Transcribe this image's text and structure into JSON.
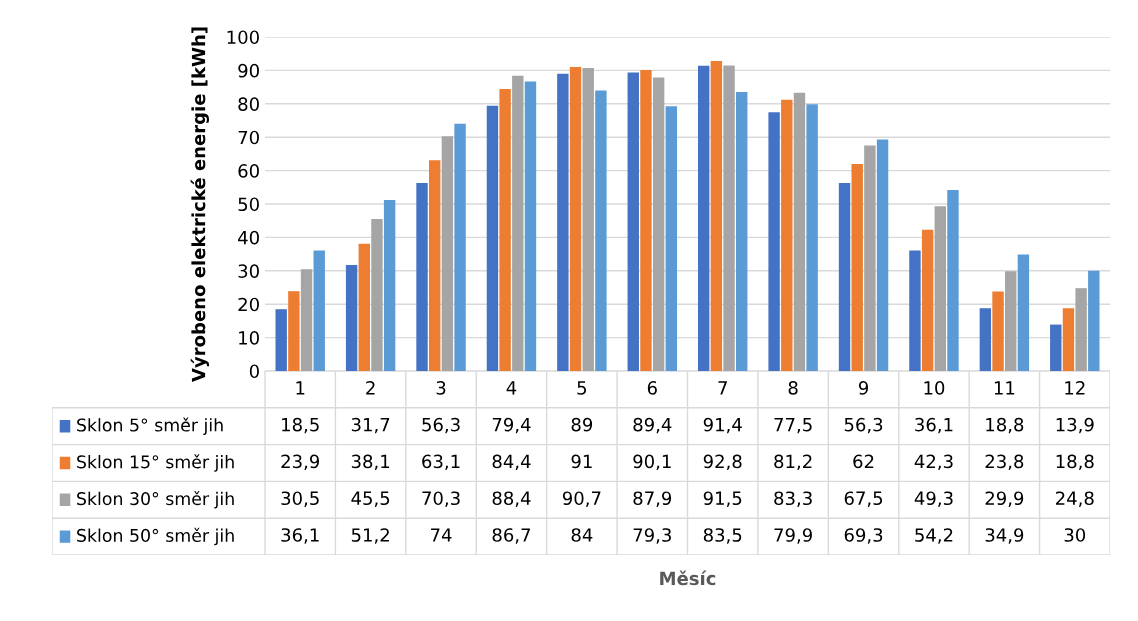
{
  "chart_data": {
    "type": "bar",
    "annotations": [
      "Měsíc"
    ],
    "ylabel": "Výrobeno elektrické energie [kWh]",
    "categories": [
      "1",
      "2",
      "3",
      "4",
      "5",
      "6",
      "7",
      "8",
      "9",
      "10",
      "11",
      "12"
    ],
    "series": [
      {
        "name": "Sklon 5° směr jih",
        "color": "#4472c4",
        "values": [
          18.5,
          31.7,
          56.3,
          79.4,
          89,
          89.4,
          91.4,
          77.5,
          56.3,
          36.1,
          18.8,
          13.9
        ],
        "value_labels": [
          "18,5",
          "31,7",
          "56,3",
          "79,4",
          "89",
          "89,4",
          "91,4",
          "77,5",
          "56,3",
          "36,1",
          "18,8",
          "13,9"
        ]
      },
      {
        "name": "Sklon 15° směr jih",
        "color": "#ed7d31",
        "values": [
          23.9,
          38.1,
          63.1,
          84.4,
          91,
          90.1,
          92.8,
          81.2,
          62,
          42.3,
          23.8,
          18.8
        ],
        "value_labels": [
          "23,9",
          "38,1",
          "63,1",
          "84,4",
          "91",
          "90,1",
          "92,8",
          "81,2",
          "62",
          "42,3",
          "23,8",
          "18,8"
        ]
      },
      {
        "name": "Sklon 30° směr jih",
        "color": "#a5a5a5",
        "values": [
          30.5,
          45.5,
          70.3,
          88.4,
          90.7,
          87.9,
          91.5,
          83.3,
          67.5,
          49.3,
          29.9,
          24.8
        ],
        "value_labels": [
          "30,5",
          "45,5",
          "70,3",
          "88,4",
          "90,7",
          "87,9",
          "91,5",
          "83,3",
          "67,5",
          "49,3",
          "29,9",
          "24,8"
        ]
      },
      {
        "name": "Sklon 50° směr jih",
        "color": "#5b9bd5",
        "values": [
          36.1,
          51.2,
          74,
          86.7,
          84,
          79.3,
          83.5,
          79.9,
          69.3,
          54.2,
          34.9,
          30
        ],
        "value_labels": [
          "36,1",
          "51,2",
          "74",
          "86,7",
          "84",
          "79,3",
          "83,5",
          "79,9",
          "69,3",
          "54,2",
          "34,9",
          "30"
        ]
      }
    ],
    "ylim": [
      0,
      100
    ],
    "yticks": [
      0,
      10,
      20,
      30,
      40,
      50,
      60,
      70,
      80,
      90,
      100
    ],
    "grid": "y",
    "legend": "bottom"
  }
}
